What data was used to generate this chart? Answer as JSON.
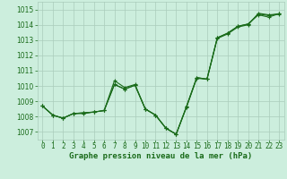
{
  "title": "Graphe pression niveau de la mer (hPa)",
  "x_labels": [
    "0",
    "1",
    "2",
    "3",
    "4",
    "5",
    "6",
    "7",
    "8",
    "9",
    "10",
    "11",
    "12",
    "13",
    "14",
    "15",
    "16",
    "17",
    "18",
    "19",
    "20",
    "21",
    "22",
    "23"
  ],
  "x_values": [
    0,
    1,
    2,
    3,
    4,
    5,
    6,
    7,
    8,
    9,
    10,
    11,
    12,
    13,
    14,
    15,
    16,
    17,
    18,
    19,
    20,
    21,
    22,
    23
  ],
  "line1": [
    1008.7,
    1008.1,
    1007.9,
    1008.2,
    1008.2,
    1008.3,
    1008.4,
    1010.35,
    1009.9,
    1010.1,
    1008.5,
    1008.1,
    1007.25,
    1006.85,
    1008.6,
    1010.5,
    1010.45,
    1013.1,
    1013.4,
    1013.85,
    1014.0,
    1014.75,
    1014.65,
    1014.7
  ],
  "line2": [
    1008.7,
    1008.1,
    1007.9,
    1008.2,
    1008.25,
    1008.3,
    1008.4,
    1010.1,
    1009.8,
    1010.05,
    1008.5,
    1008.1,
    1007.25,
    1006.85,
    1008.65,
    1010.55,
    1010.45,
    1013.15,
    1013.45,
    1013.9,
    1014.05,
    1014.7,
    1014.6,
    1014.72
  ],
  "line3": [
    1008.7,
    1008.1,
    1007.9,
    1008.2,
    1008.25,
    1008.3,
    1008.4,
    1010.1,
    1009.8,
    1010.05,
    1008.5,
    1008.1,
    1007.25,
    1006.85,
    1008.65,
    1010.55,
    1010.45,
    1013.15,
    1013.45,
    1013.9,
    1014.05,
    1014.65,
    1014.5,
    1014.72
  ],
  "line_color": "#1a6b1a",
  "bg_color": "#cceedd",
  "grid_color": "#aaccbb",
  "label_color": "#1a6b1a",
  "ylim_min": 1006.5,
  "ylim_max": 1015.5,
  "yticks": [
    1007,
    1008,
    1009,
    1010,
    1011,
    1012,
    1013,
    1014,
    1015
  ],
  "title_fontsize": 6.5,
  "tick_fontsize": 5.5
}
